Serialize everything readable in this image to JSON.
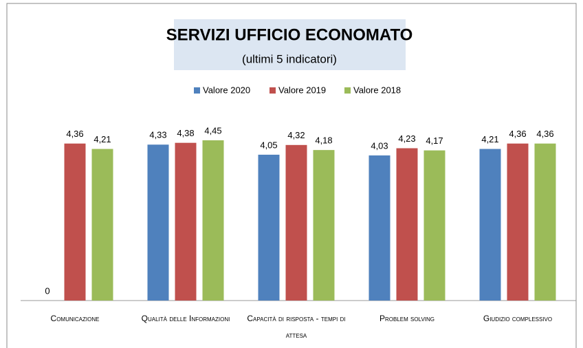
{
  "chart_data": {
    "type": "bar",
    "title": "SERVIZI UFFICIO ECONOMATO",
    "subtitle": "(ultimi 5 indicatori)",
    "categories": [
      "Comunicazione",
      "Qualità delle Informazioni",
      "Capacità di risposta - tempi di attesa",
      "Problem solving",
      "Giudizio complessivo"
    ],
    "series": [
      {
        "name": "Valore 2020",
        "color": "#4f81bd",
        "values": [
          0,
          4.33,
          4.05,
          4.03,
          4.21
        ],
        "value_labels": [
          "0",
          "4,33",
          "4,05",
          "4,03",
          "4,21"
        ]
      },
      {
        "name": "Valore 2019",
        "color": "#c0504d",
        "values": [
          4.36,
          4.38,
          4.32,
          4.23,
          4.36
        ],
        "value_labels": [
          "4,36",
          "4,38",
          "4,32",
          "4,23",
          "4,36"
        ]
      },
      {
        "name": "Valore 2018",
        "color": "#9bbb59",
        "values": [
          4.21,
          4.45,
          4.18,
          4.17,
          4.36
        ],
        "value_labels": [
          "4,21",
          "4,45",
          "4,18",
          "4,17",
          "4,36"
        ]
      }
    ],
    "legend": "top"
  }
}
